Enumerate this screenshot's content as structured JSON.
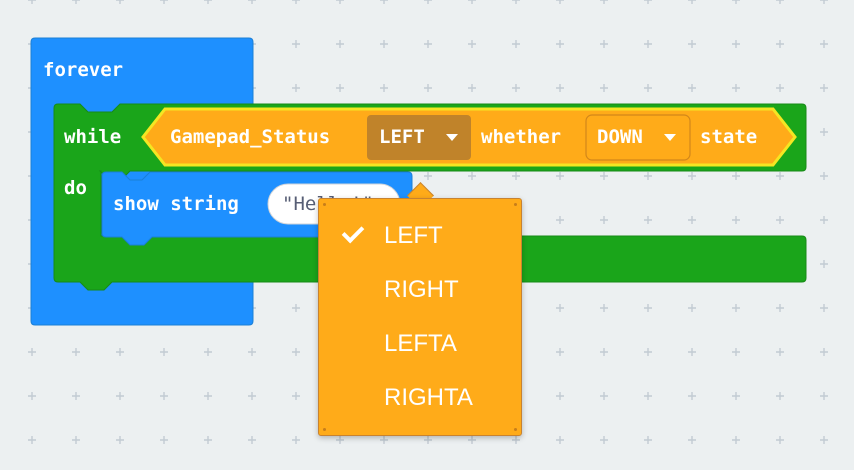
{
  "workspace": {
    "grid_color": "#c2cbd3",
    "background": "#ecf0f1"
  },
  "blocks": {
    "forever": {
      "label": "forever",
      "color": "#1e90ff"
    },
    "while": {
      "label": "while",
      "do_label": "do",
      "color": "#1aa51a"
    },
    "gamepad": {
      "label": "Gamepad_Status",
      "button_value": "LEFT",
      "whether_label": "whether",
      "state_value": "DOWN",
      "state_label": "state",
      "color": "#ffab19"
    },
    "show_string": {
      "label": "show string",
      "value": "\"Hello!\"",
      "color": "#1e90ff"
    }
  },
  "dropdown": {
    "selected": "LEFT",
    "items": [
      {
        "label": "LEFT",
        "checked": true
      },
      {
        "label": "RIGHT",
        "checked": false
      },
      {
        "label": "LEFTA",
        "checked": false
      },
      {
        "label": "RIGHTA",
        "checked": false
      }
    ],
    "color": "#ffab19"
  }
}
